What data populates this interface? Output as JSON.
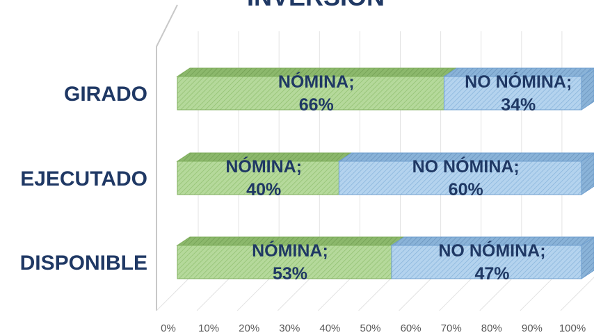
{
  "chart_data": {
    "type": "bar",
    "orientation": "horizontal",
    "stacked": true,
    "percent": true,
    "title": "INVERSIÓN",
    "categories": [
      "GIRADO",
      "EJECUTADO",
      "DISPONIBLE"
    ],
    "series": [
      {
        "name": "NÓMINA",
        "values": [
          66,
          40,
          53
        ],
        "color": "#a9d18e"
      },
      {
        "name": "NO NÓMINA",
        "values": [
          34,
          60,
          47
        ],
        "color": "#9dc3e6"
      }
    ],
    "data_labels": [
      {
        "category": "GIRADO",
        "series": "NÓMINA",
        "line1": "NÓMINA;",
        "line2": "66%"
      },
      {
        "category": "GIRADO",
        "series": "NO NÓMINA",
        "line1": "NO NÓMINA;",
        "line2": "34%"
      },
      {
        "category": "EJECUTADO",
        "series": "NÓMINA",
        "line1": "NÓMINA;",
        "line2": "40%"
      },
      {
        "category": "EJECUTADO",
        "series": "NO NÓMINA",
        "line1": "NO NÓMINA;",
        "line2": "60%"
      },
      {
        "category": "DISPONIBLE",
        "series": "NÓMINA",
        "line1": "NÓMINA;",
        "line2": "53%"
      },
      {
        "category": "DISPONIBLE",
        "series": "NO NÓMINA",
        "line1": "NO NÓMINA;",
        "line2": "47%"
      }
    ],
    "x_ticks": [
      "0%",
      "10%",
      "20%",
      "30%",
      "40%",
      "50%",
      "60%",
      "70%",
      "80%",
      "90%",
      "100%"
    ],
    "xlim": [
      0,
      100
    ],
    "grid": true,
    "legend": "none",
    "style": "3d"
  }
}
